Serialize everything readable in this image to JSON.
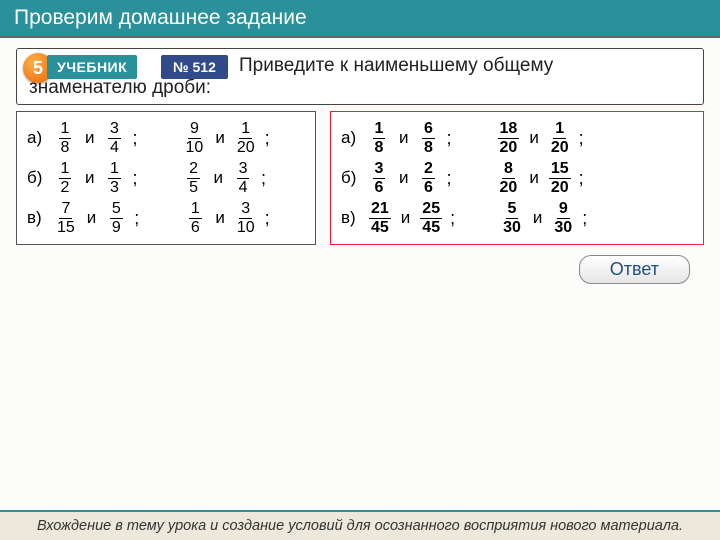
{
  "header": {
    "title": "Проверим домашнее задание"
  },
  "badge": {
    "num": "5",
    "textbook": "УЧЕБНИК",
    "task_no": "№ 512"
  },
  "task": {
    "line1": "Приведите к наименьшему общему",
    "line2": "знаменателю дроби:"
  },
  "left_panel": {
    "rows": [
      {
        "label": "а)",
        "a": {
          "n": "1",
          "d": "8"
        },
        "b": {
          "n": "3",
          "d": "4"
        },
        "c": {
          "n": "9",
          "d": "10"
        },
        "e": {
          "n": "1",
          "d": "20"
        }
      },
      {
        "label": "б)",
        "a": {
          "n": "1",
          "d": "2"
        },
        "b": {
          "n": "1",
          "d": "3"
        },
        "c": {
          "n": "2",
          "d": "5"
        },
        "e": {
          "n": "3",
          "d": "4"
        }
      },
      {
        "label": "в)",
        "a": {
          "n": "7",
          "d": "15"
        },
        "b": {
          "n": "5",
          "d": "9"
        },
        "c": {
          "n": "1",
          "d": "6"
        },
        "e": {
          "n": "3",
          "d": "10"
        }
      }
    ]
  },
  "right_panel": {
    "rows": [
      {
        "label": "а)",
        "a": {
          "n": "1",
          "d": "8"
        },
        "b": {
          "n": "6",
          "d": "8"
        },
        "c": {
          "n": "18",
          "d": "20"
        },
        "e": {
          "n": "1",
          "d": "20"
        }
      },
      {
        "label": "б)",
        "a": {
          "n": "3",
          "d": "6"
        },
        "b": {
          "n": "2",
          "d": "6"
        },
        "c": {
          "n": "8",
          "d": "20"
        },
        "e": {
          "n": "15",
          "d": "20"
        }
      },
      {
        "label": "в)",
        "a": {
          "n": "21",
          "d": "45"
        },
        "b": {
          "n": "25",
          "d": "45"
        },
        "c": {
          "n": "5",
          "d": "30"
        },
        "e": {
          "n": "9",
          "d": "30"
        }
      }
    ]
  },
  "and_word": "и",
  "answer_btn": "Ответ",
  "footer": "Вхождение в тему урока и создание условий для осознанного восприятия нового материала.",
  "colors": {
    "header_bg": "#2a9099",
    "task_num_bg": "#314a8a",
    "right_border": "#e23"
  }
}
